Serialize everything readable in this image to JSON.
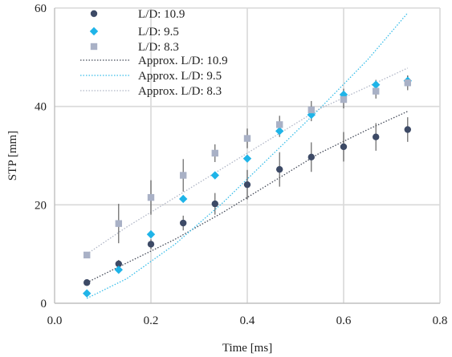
{
  "chart_data": {
    "type": "scatter",
    "xlabel": "Time [ms]",
    "ylabel": "STP [mm]",
    "xlim": [
      0.0,
      0.8
    ],
    "ylim": [
      0,
      60
    ],
    "xticks": [
      0.0,
      0.2,
      0.4,
      0.6,
      0.8
    ],
    "xtick_labels": [
      "0.0",
      "0.2",
      "0.4",
      "0.6",
      "0.8"
    ],
    "yticks": [
      0,
      20,
      40,
      60
    ],
    "ytick_labels": [
      "0",
      "20",
      "40",
      "60"
    ],
    "grid": true,
    "legend_position": "top-left",
    "series": [
      {
        "name": "L/D: 10.9",
        "marker": "circle",
        "color": "#3d4a66",
        "x": [
          0.067,
          0.133,
          0.2,
          0.267,
          0.333,
          0.4,
          0.467,
          0.533,
          0.6,
          0.667,
          0.733
        ],
        "y": [
          4.2,
          8.0,
          12.0,
          16.3,
          20.2,
          24.1,
          27.2,
          29.7,
          31.8,
          33.8,
          35.3
        ],
        "err": [
          0,
          0.8,
          1.0,
          1.5,
          2.2,
          3.0,
          3.5,
          3.0,
          3.0,
          2.8,
          2.5
        ]
      },
      {
        "name": "L/D: 9.5",
        "marker": "diamond",
        "color": "#1fb4e8",
        "x": [
          0.067,
          0.133,
          0.2,
          0.267,
          0.333,
          0.4,
          0.467,
          0.533,
          0.6,
          0.667,
          0.733
        ],
        "y": [
          2.0,
          6.8,
          14.0,
          21.2,
          26.0,
          29.4,
          35.0,
          38.3,
          42.4,
          44.4,
          45.2
        ],
        "err": [
          0,
          0,
          0,
          0,
          0,
          0,
          1.2,
          1.3,
          1.2,
          1.0,
          1.0
        ]
      },
      {
        "name": "L/D: 8.3",
        "marker": "square",
        "color": "#a9b1c6",
        "x": [
          0.067,
          0.133,
          0.2,
          0.267,
          0.333,
          0.4,
          0.467,
          0.533,
          0.6,
          0.667,
          0.733
        ],
        "y": [
          9.8,
          16.2,
          21.5,
          26.0,
          30.5,
          33.5,
          36.3,
          39.3,
          41.4,
          43.1,
          44.8
        ],
        "err": [
          0,
          4.0,
          3.5,
          3.3,
          1.8,
          2.0,
          1.8,
          1.8,
          1.8,
          1.5,
          1.5
        ]
      }
    ],
    "fits": [
      {
        "name": "Approx. L/D: 10.9",
        "style": "dotted",
        "color": "#444a58",
        "points": [
          [
            0.067,
            4.2
          ],
          [
            0.15,
            8.2
          ],
          [
            0.25,
            13.0
          ],
          [
            0.35,
            18.5
          ],
          [
            0.45,
            24.5
          ],
          [
            0.55,
            30.5
          ],
          [
            0.65,
            35.3
          ],
          [
            0.733,
            39.0
          ]
        ]
      },
      {
        "name": "Approx. L/D: 9.5",
        "style": "dotted",
        "color": "#37bde9",
        "points": [
          [
            0.067,
            1.0
          ],
          [
            0.15,
            5.0
          ],
          [
            0.25,
            12.0
          ],
          [
            0.35,
            20.5
          ],
          [
            0.45,
            30.0
          ],
          [
            0.55,
            39.5
          ],
          [
            0.65,
            49.5
          ],
          [
            0.733,
            59.0
          ]
        ]
      },
      {
        "name": "Approx. L/D: 8.3",
        "style": "dotted",
        "color": "#b0b6c6",
        "points": [
          [
            0.067,
            10.0
          ],
          [
            0.15,
            15.5
          ],
          [
            0.25,
            21.5
          ],
          [
            0.35,
            27.5
          ],
          [
            0.45,
            33.5
          ],
          [
            0.55,
            39.5
          ],
          [
            0.65,
            44.0
          ],
          [
            0.733,
            47.8
          ]
        ]
      }
    ]
  }
}
